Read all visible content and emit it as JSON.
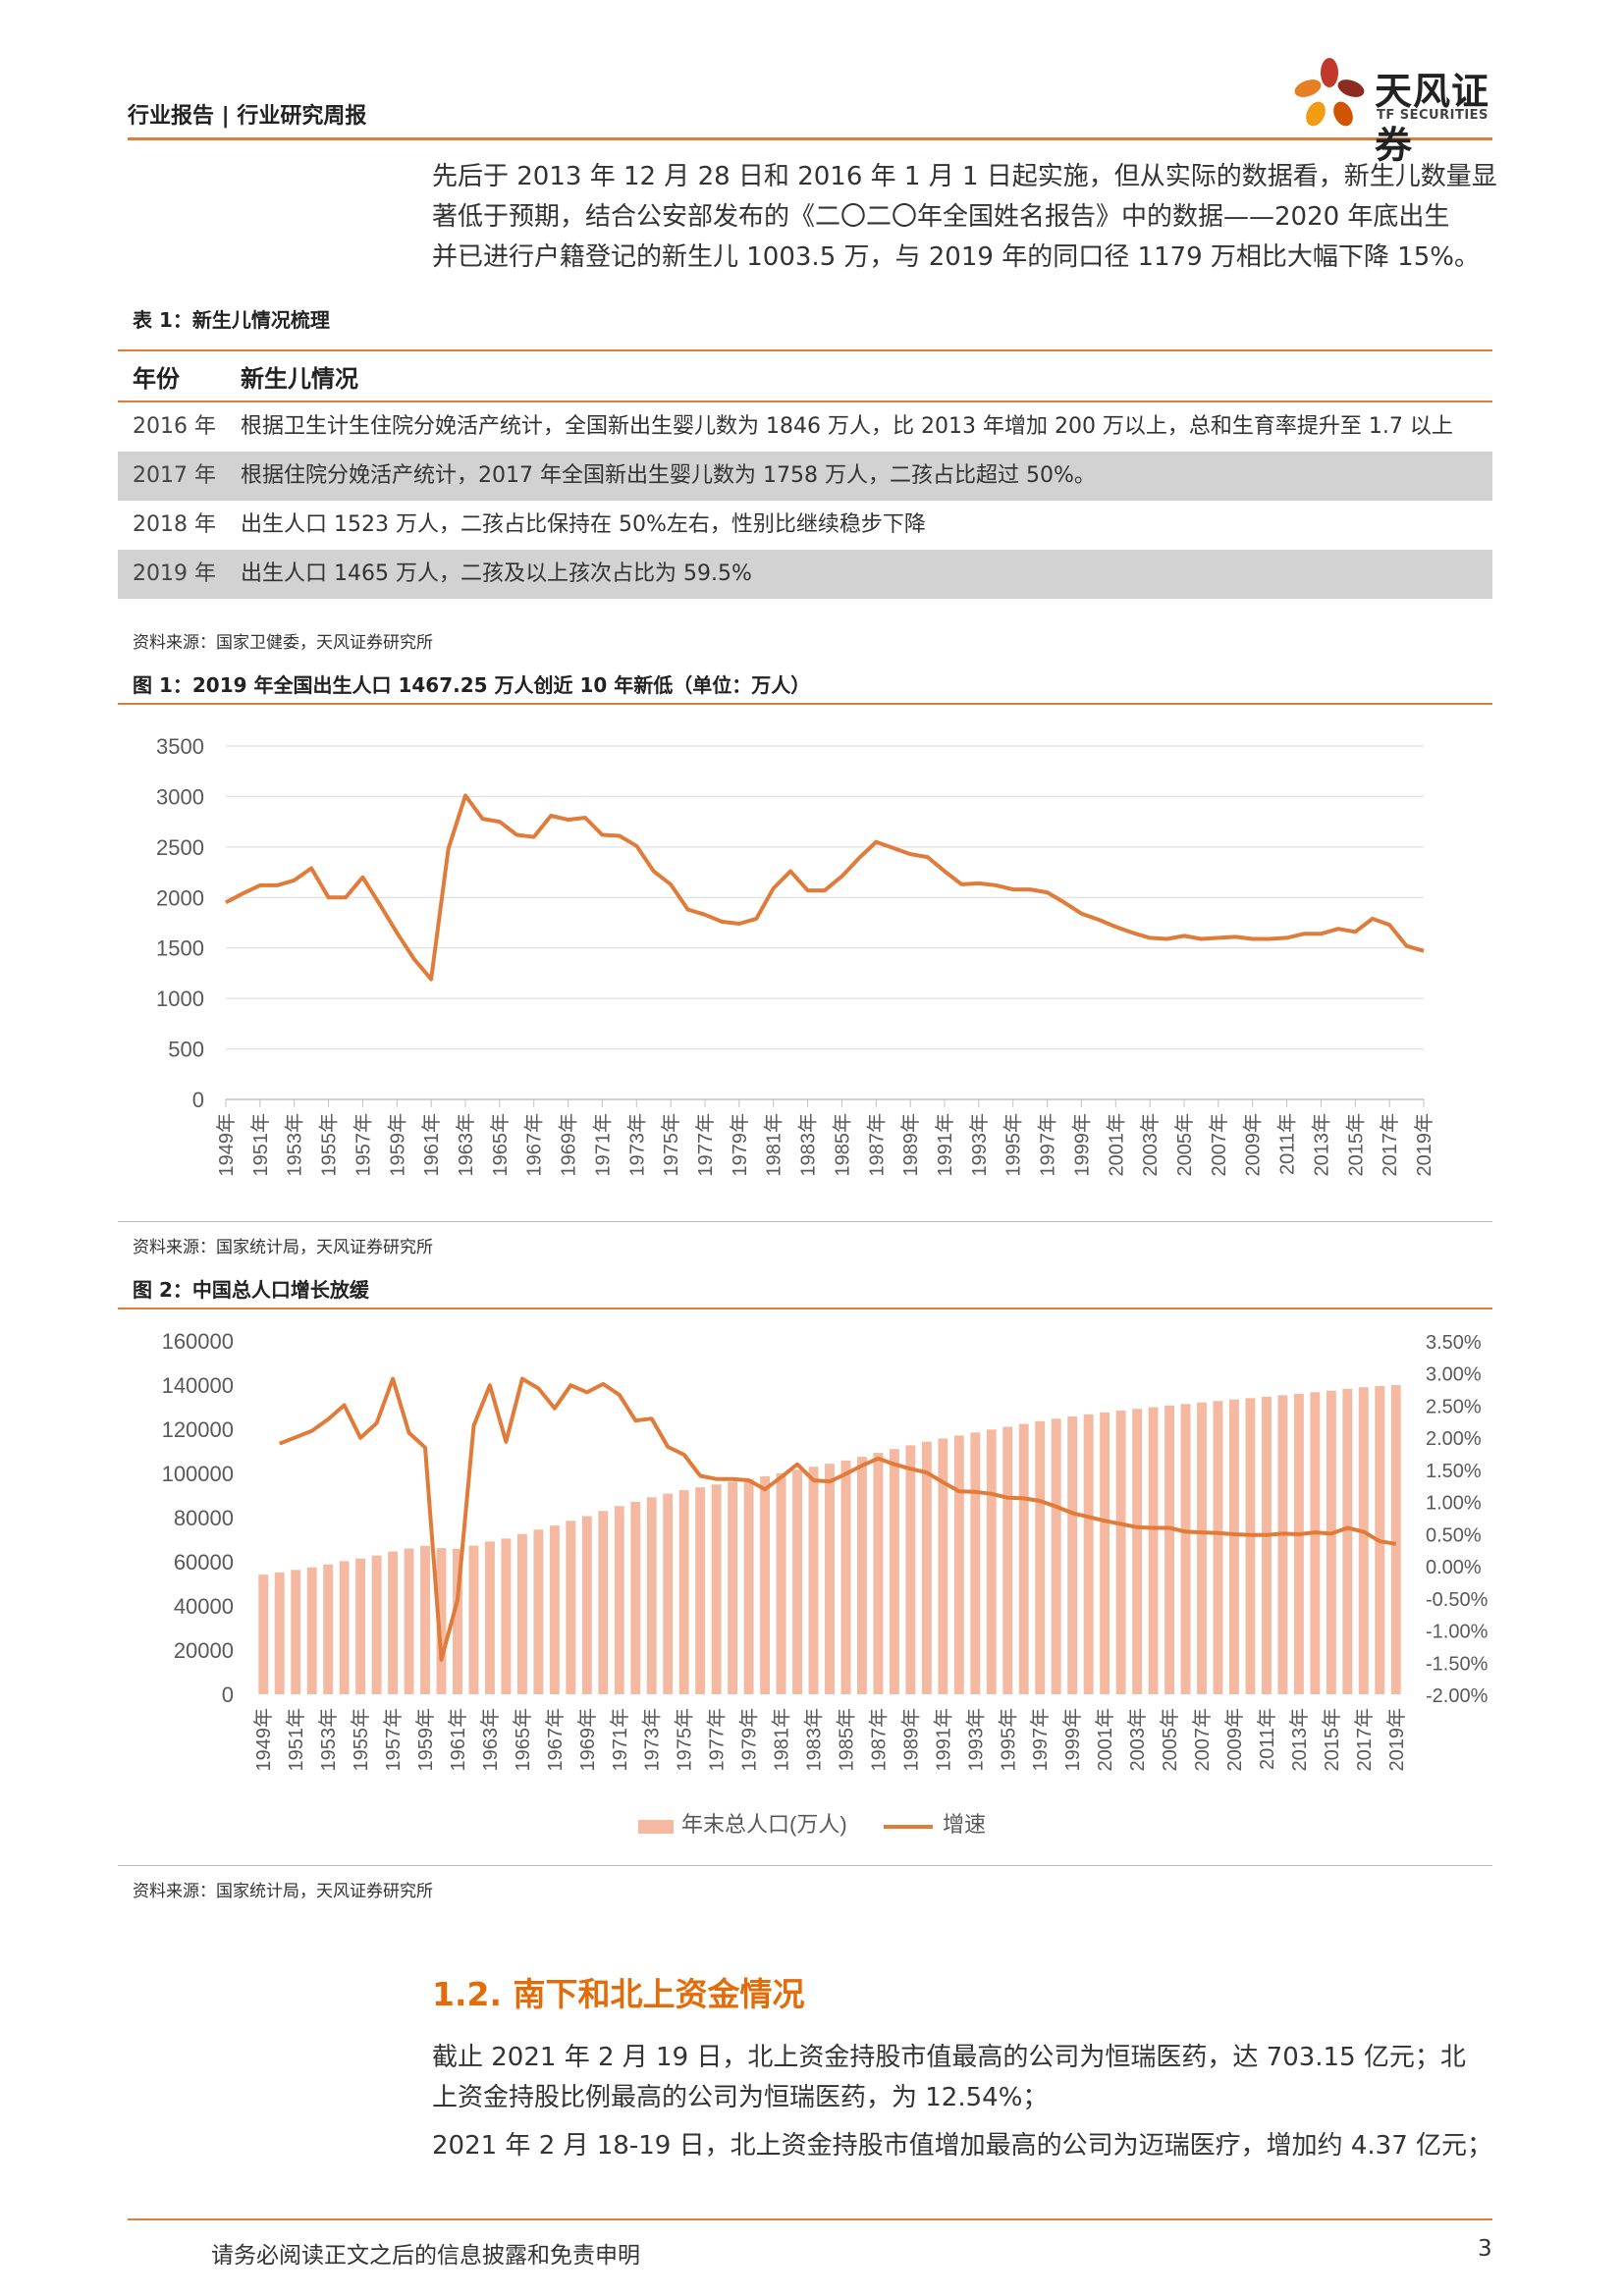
{
  "header": {
    "title": "行业报告 | 行业研究周报",
    "logo_cn": "天风证券",
    "logo_en": "TF SECURITIES"
  },
  "intro_paragraph": {
    "line1": "先后于 2013 年 12 月 28 日和 2016 年 1 月 1 日起实施，但从实际的数据看，新生儿数量显",
    "line2": "著低于预期，结合公安部发布的《二〇二〇年全国姓名报告》中的数据——2020 年底出生",
    "line3": "并已进行户籍登记的新生儿 1003.5 万，与 2019 年的同口径 1179 万相比大幅下降 15%。"
  },
  "table1": {
    "caption": "表 1：新生儿情况梳理",
    "headers": [
      "年份",
      "新生儿情况"
    ],
    "rows": [
      {
        "year": "2016 年",
        "text": "根据卫生计生住院分娩活产统计，全国新出生婴儿数为 1846 万人，比 2013 年增加 200 万以上，总和生育率提升至 1.7 以上"
      },
      {
        "year": "2017 年",
        "text": "根据住院分娩活产统计，2017 年全国新出生婴儿数为 1758 万人，二孩占比超过 50%。"
      },
      {
        "year": "2018 年",
        "text": "出生人口 1523 万人，二孩占比保持在 50%左右，性别比继续稳步下降"
      },
      {
        "year": "2019 年",
        "text": "出生人口 1465 万人，二孩及以上孩次占比为 59.5%"
      }
    ],
    "source": "资料来源：国家卫健委，天风证券研究所"
  },
  "figure1": {
    "caption": "图 1：2019 年全国出生人口 1467.25 万人创近 10 年新低（单位：万人）",
    "source": "资料来源：国家统计局，天风证券研究所",
    "line_color": "#e07b39"
  },
  "figure2": {
    "caption": "图 2：中国总人口增长放缓",
    "source": "资料来源：国家统计局，天风证券研究所",
    "bar_color": "#f4b9a0",
    "line_color": "#e07b39"
  },
  "chart_data": [
    {
      "type": "line",
      "title": "图 1：2019 年全国出生人口 1467.25 万人创近 10 年新低（单位：万人）",
      "ylim": [
        0,
        3500
      ],
      "y_ticks": [
        "0",
        "500",
        "1000",
        "1500",
        "2000",
        "2500",
        "3000",
        "3500"
      ],
      "x_tick_labels": [
        "1949年",
        "1951年",
        "1953年",
        "1955年",
        "1957年",
        "1959年",
        "1961年",
        "1963年",
        "1965年",
        "1967年",
        "1969年",
        "1971年",
        "1973年",
        "1975年",
        "1977年",
        "1979年",
        "1981年",
        "1983年",
        "1985年",
        "1987年",
        "1989年",
        "1991年",
        "1993年",
        "1995年",
        "1997年",
        "1999年",
        "2001年",
        "2003年",
        "2005年",
        "2007年",
        "2009年",
        "2011年",
        "2013年",
        "2015年",
        "2017年",
        "2019年"
      ],
      "x": [
        1949,
        1950,
        1951,
        1952,
        1953,
        1954,
        1955,
        1956,
        1957,
        1958,
        1959,
        1960,
        1961,
        1962,
        1963,
        1964,
        1965,
        1966,
        1967,
        1968,
        1969,
        1970,
        1971,
        1972,
        1973,
        1974,
        1975,
        1976,
        1977,
        1978,
        1979,
        1980,
        1981,
        1982,
        1983,
        1984,
        1985,
        1986,
        1987,
        1988,
        1989,
        1990,
        1991,
        1992,
        1993,
        1994,
        1995,
        1996,
        1997,
        1998,
        1999,
        2000,
        2001,
        2002,
        2003,
        2004,
        2005,
        2006,
        2007,
        2008,
        2009,
        2010,
        2011,
        2012,
        2013,
        2014,
        2015,
        2016,
        2017,
        2018,
        2019
      ],
      "series": [
        {
          "values": [
            1950,
            2040,
            2120,
            2120,
            2170,
            2290,
            2000,
            2000,
            2200,
            1930,
            1650,
            1390,
            1190,
            2480,
            3010,
            2780,
            2750,
            2620,
            2600,
            2810,
            2770,
            2790,
            2620,
            2610,
            2510,
            2260,
            2130,
            1880,
            1830,
            1760,
            1740,
            1790,
            2090,
            2260,
            2070,
            2070,
            2210,
            2390,
            2550,
            2490,
            2430,
            2400,
            2260,
            2130,
            2140,
            2120,
            2080,
            2080,
            2050,
            1950,
            1840,
            1780,
            1710,
            1650,
            1600,
            1590,
            1620,
            1590,
            1600,
            1610,
            1590,
            1590,
            1600,
            1640,
            1640,
            1690,
            1660,
            1790,
            1730,
            1520,
            1470
          ]
        }
      ]
    },
    {
      "type": "bar",
      "title": "图 2：中国总人口增长放缓",
      "ylim": [
        0,
        160000
      ],
      "y2lim": [
        -2.0,
        3.5
      ],
      "y_ticks": [
        "0",
        "20000",
        "40000",
        "60000",
        "80000",
        "100000",
        "120000",
        "140000",
        "160000"
      ],
      "y2_ticks": [
        "-2.00%",
        "-1.50%",
        "-1.00%",
        "-0.50%",
        "0.00%",
        "0.50%",
        "1.00%",
        "1.50%",
        "2.00%",
        "2.50%",
        "3.00%",
        "3.50%"
      ],
      "x_tick_labels": [
        "1949年",
        "1951年",
        "1953年",
        "1955年",
        "1957年",
        "1959年",
        "1961年",
        "1963年",
        "1965年",
        "1967年",
        "1969年",
        "1971年",
        "1973年",
        "1975年",
        "1977年",
        "1979年",
        "1981年",
        "1983年",
        "1985年",
        "1987年",
        "1989年",
        "1991年",
        "1993年",
        "1995年",
        "1997年",
        "1999年",
        "2001年",
        "2003年",
        "2005年",
        "2007年",
        "2009年",
        "2011年",
        "2013年",
        "2015年",
        "2017年",
        "2019年"
      ],
      "x": [
        1949,
        1950,
        1951,
        1952,
        1953,
        1954,
        1955,
        1956,
        1957,
        1958,
        1959,
        1960,
        1961,
        1962,
        1963,
        1964,
        1965,
        1966,
        1967,
        1968,
        1969,
        1970,
        1971,
        1972,
        1973,
        1974,
        1975,
        1976,
        1977,
        1978,
        1979,
        1980,
        1981,
        1982,
        1983,
        1984,
        1985,
        1986,
        1987,
        1988,
        1989,
        1990,
        1991,
        1992,
        1993,
        1994,
        1995,
        1996,
        1997,
        1998,
        1999,
        2000,
        2001,
        2002,
        2003,
        2004,
        2005,
        2006,
        2007,
        2008,
        2009,
        2010,
        2011,
        2012,
        2013,
        2014,
        2015,
        2016,
        2017,
        2018,
        2019
      ],
      "series": [
        {
          "name": "年末总人口(万人)",
          "type": "bar",
          "values": [
            54167,
            55196,
            56300,
            57482,
            58796,
            60266,
            61465,
            62828,
            64653,
            65994,
            67207,
            66207,
            65859,
            67296,
            69172,
            70499,
            72538,
            74542,
            76368,
            78534,
            80671,
            82992,
            85229,
            87177,
            89211,
            90859,
            92420,
            93717,
            94974,
            96259,
            97542,
            98705,
            100072,
            101654,
            103008,
            104357,
            105851,
            107507,
            109300,
            111026,
            112704,
            114333,
            115823,
            117171,
            118517,
            119850,
            121121,
            122389,
            123626,
            124761,
            125786,
            126743,
            127627,
            128453,
            129227,
            129988,
            130756,
            131448,
            132129,
            132802,
            133450,
            134091,
            134735,
            135404,
            136072,
            136782,
            137462,
            138271,
            139008,
            139538,
            140005
          ]
        },
        {
          "name": "增速",
          "type": "line",
          "values": [
            null,
            1.9,
            2.0,
            2.1,
            2.28,
            2.5,
            1.99,
            2.22,
            2.91,
            2.07,
            1.84,
            -1.46,
            -0.53,
            2.18,
            2.81,
            1.93,
            2.91,
            2.76,
            2.45,
            2.81,
            2.7,
            2.83,
            2.66,
            2.26,
            2.29,
            1.85,
            1.73,
            1.4,
            1.35,
            1.35,
            1.33,
            1.19,
            1.38,
            1.58,
            1.33,
            1.31,
            1.43,
            1.56,
            1.67,
            1.58,
            1.51,
            1.45,
            1.3,
            1.16,
            1.15,
            1.12,
            1.06,
            1.05,
            1.01,
            0.92,
            0.82,
            0.76,
            0.7,
            0.65,
            0.6,
            0.59,
            0.59,
            0.53,
            0.52,
            0.51,
            0.49,
            0.48,
            0.48,
            0.5,
            0.49,
            0.52,
            0.5,
            0.59,
            0.53,
            0.38,
            0.34
          ]
        }
      ],
      "legend": "bottom"
    }
  ],
  "section": {
    "heading": "1.2. 南下和北上资金情况",
    "p1_line1": "截止 2021 年 2 月 19 日，北上资金持股市值最高的公司为恒瑞医药，达 703.15 亿元；北",
    "p1_line2": "上资金持股比例最高的公司为恒瑞医药，为 12.54%；",
    "p2": "2021 年 2 月 18-19 日，北上资金持股市值增加最高的公司为迈瑞医疗，增加约 4.37 亿元；"
  },
  "footer": {
    "disclaimer": "请务必阅读正文之后的信息披露和免责申明",
    "page_number": "3"
  }
}
